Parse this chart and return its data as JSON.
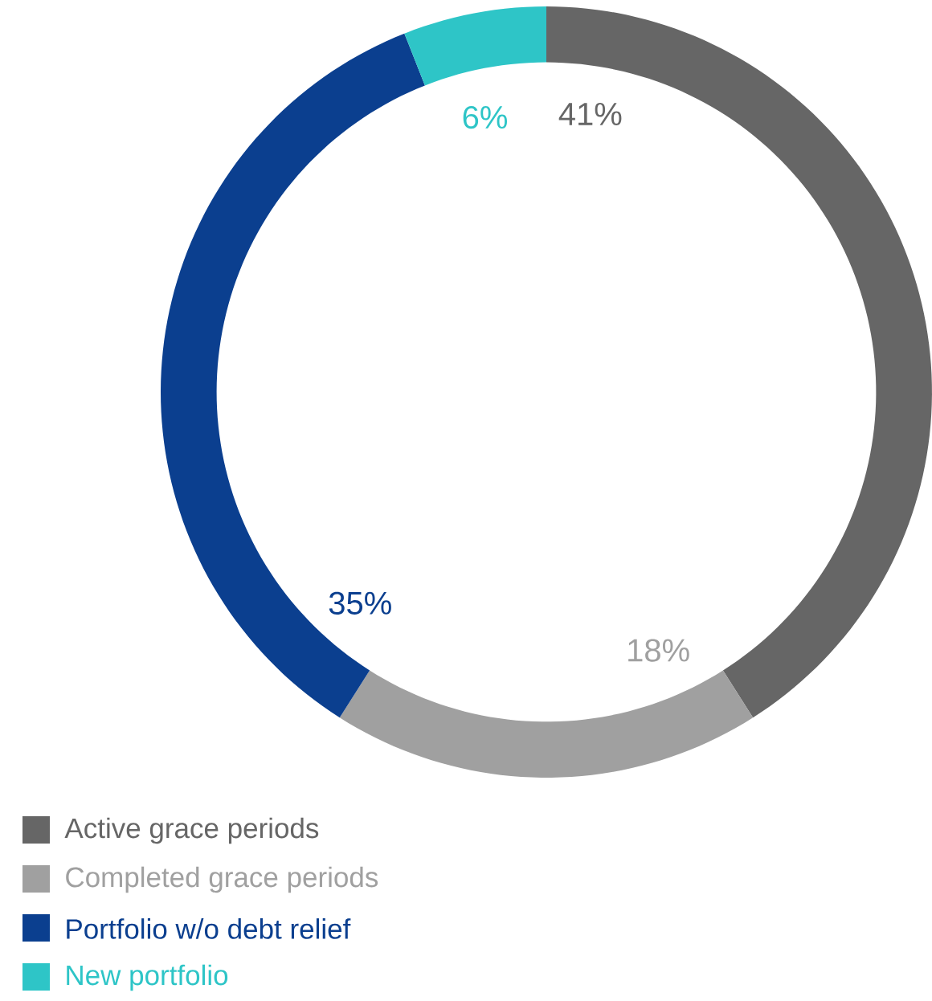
{
  "chart_data": {
    "type": "donut",
    "categories": [
      "Active grace periods",
      "Completed grace periods",
      "Portfolio w/o debt relief",
      "New portfolio"
    ],
    "values": [
      41,
      18,
      35,
      6
    ],
    "colors": [
      "#666666",
      "#a0a0a0",
      "#0b3f8f",
      "#2ec5c7"
    ],
    "value_labels": [
      "41%",
      "18%",
      "35%",
      "6%"
    ],
    "legend": "bottom left"
  }
}
